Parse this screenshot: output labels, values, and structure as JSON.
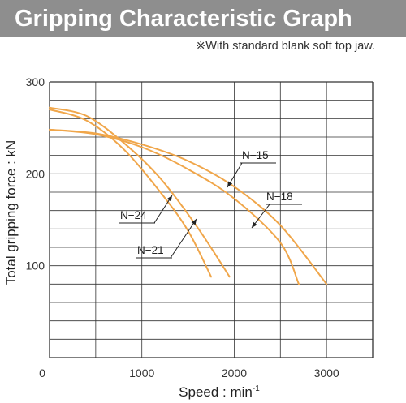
{
  "header": {
    "title": "Gripping Characteristic Graph"
  },
  "note": "※With standard blank soft top jaw.",
  "colors": {
    "header_bg": "#8e8e8e",
    "curve": "#f0a64a",
    "grid": "#333333"
  },
  "chart_data": {
    "type": "line",
    "xlabel": "Speed : min",
    "xlabel_sup": "-1",
    "ylabel": "Total gripping force : kN",
    "xlim": [
      0,
      3500
    ],
    "ylim": [
      0,
      300
    ],
    "x_ticks": [
      "0",
      "1000",
      "2000",
      "3000"
    ],
    "y_ticks": [
      "100",
      "200",
      "300"
    ],
    "grid": true,
    "series": [
      {
        "name": "N−15",
        "x": [
          0,
          500,
          1000,
          1500,
          2000,
          2500,
          2700
        ],
        "y": [
          248,
          243,
          229,
          205,
          173,
          125,
          80
        ]
      },
      {
        "name": "N−18",
        "x": [
          0,
          500,
          1000,
          1500,
          2000,
          2500,
          3000
        ],
        "y": [
          248,
          244,
          232,
          214,
          186,
          144,
          80
        ]
      },
      {
        "name": "N−21",
        "x": [
          0,
          400,
          800,
          1200,
          1600,
          1950
        ],
        "y": [
          272,
          263,
          234,
          195,
          142,
          88
        ]
      },
      {
        "name": "N−24",
        "x": [
          0,
          400,
          800,
          1200,
          1500,
          1750
        ],
        "y": [
          270,
          258,
          227,
          180,
          138,
          88
        ]
      }
    ]
  }
}
